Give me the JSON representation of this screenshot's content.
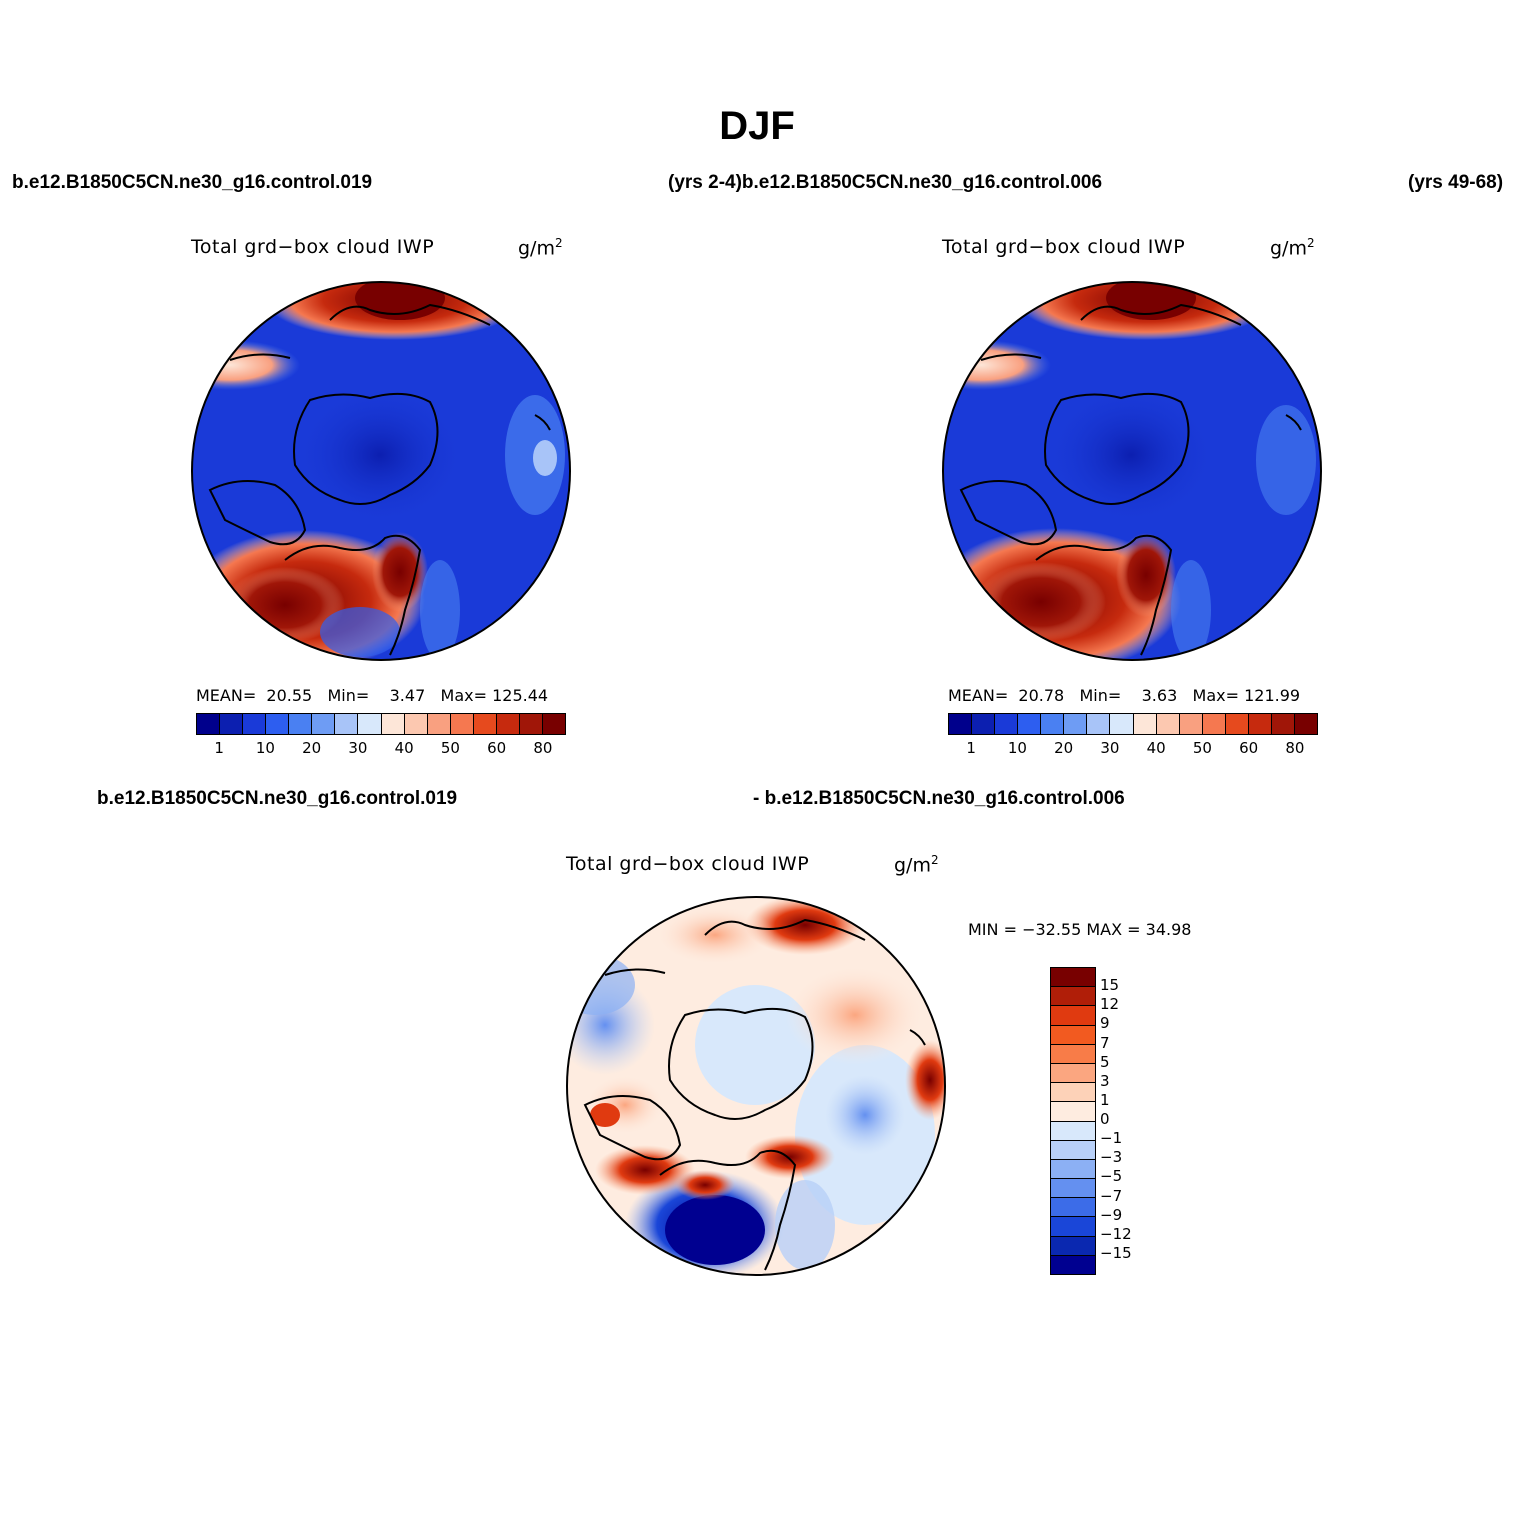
{
  "figure": {
    "title": "DJF"
  },
  "top_left": {
    "case_name": "b.e12.B1850C5CN.ne30_g16.control.019",
    "plot_title": "Total grd−box cloud IWP",
    "units_base": "g/m",
    "units_exp": "2",
    "stats": {
      "mean_label": "MEAN=",
      "mean": "20.55",
      "min_label": "Min=",
      "min": "3.47",
      "max_label": "Max=",
      "max": "125.44"
    }
  },
  "top_middle_label": {
    "years_a": "(yrs 2-4)",
    "case_b": "b.e12.B1850C5CN.ne30_g16.control.006"
  },
  "top_right": {
    "years": "(yrs 49-68)",
    "plot_title": "Total grd−box cloud IWP",
    "units_base": "g/m",
    "units_exp": "2",
    "stats": {
      "mean_label": "MEAN=",
      "mean": "20.78",
      "min_label": "Min=",
      "min": "3.63",
      "max_label": "Max=",
      "max": "121.99"
    }
  },
  "difference": {
    "case_a": "b.e12.B1850C5CN.ne30_g16.control.019",
    "case_b": "- b.e12.B1850C5CN.ne30_g16.control.006",
    "plot_title": "Total grd−box cloud IWP",
    "units_base": "g/m",
    "units_exp": "2",
    "stats": "MIN = −32.55 MAX =  34.98"
  },
  "colors": {
    "abs_scale": [
      "#00008c",
      "#0c1fb0",
      "#1a3ad8",
      "#2d5ef0",
      "#4a80f2",
      "#6e9cf4",
      "#a8c4f8",
      "#d8e8fb",
      "#fde6d8",
      "#fcc8b0",
      "#f9a080",
      "#f57850",
      "#e64a1e",
      "#c62a0e",
      "#a01608",
      "#780000"
    ],
    "diff_scale": [
      "#780000",
      "#b01e08",
      "#e03a10",
      "#f25a20",
      "#f87c48",
      "#fba680",
      "#fdd2b8",
      "#feece0",
      "#d8e8fb",
      "#b8d0f8",
      "#8cb0f4",
      "#6490f0",
      "#3c6ce8",
      "#1a46d8",
      "#0a28b0",
      "#000090"
    ],
    "land_outline": "#000000"
  },
  "colorbar_abs_ticks": [
    "1",
    "10",
    "20",
    "30",
    "40",
    "50",
    "60",
    "80"
  ],
  "colorbar_diff_ticks": [
    "15",
    "12",
    "9",
    "7",
    "5",
    "3",
    "1",
    "0",
    "−1",
    "−3",
    "−5",
    "−7",
    "−9",
    "−12",
    "−15"
  ]
}
